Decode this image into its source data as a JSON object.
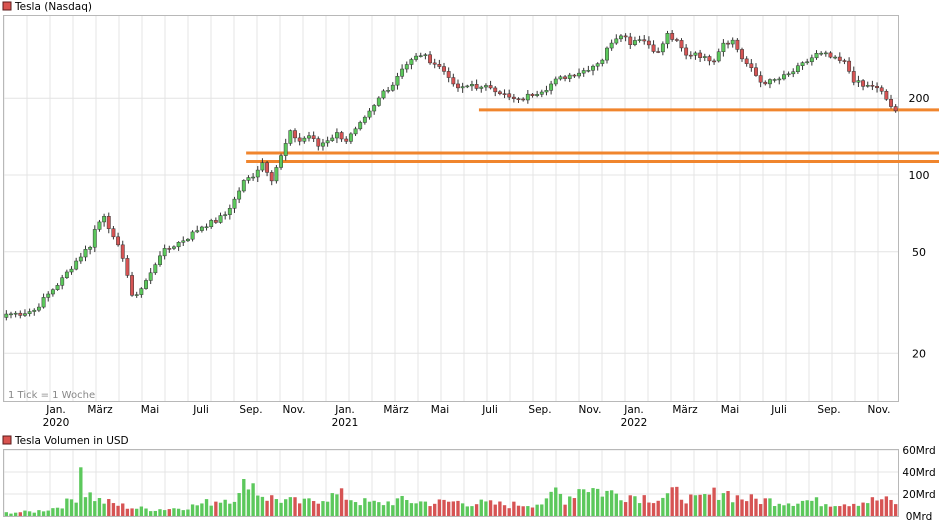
{
  "chart_data": [
    {
      "type": "candlestick",
      "title": "Tesla (Nasdaq)",
      "scale": "log",
      "ylim": [
        13,
        420
      ],
      "y_ticks": [
        20,
        50,
        100,
        200
      ],
      "y_tick_labels": [
        "20",
        "50",
        "100",
        "200"
      ],
      "x_month_labels": [
        "Jan.",
        "März",
        "Mai",
        "Juli",
        "Sep.",
        "Nov.",
        "Jan.",
        "März",
        "Mai",
        "Juli",
        "Sep.",
        "Nov.",
        "Jan.",
        "März",
        "Mai",
        "Juli",
        "Sep.",
        "Nov."
      ],
      "x_year_labels": [
        "2020",
        "2021",
        "2022"
      ],
      "note": "1 Tick = 1 Woche",
      "grid": true,
      "up_color": "#5cc85c",
      "down_color": "#d65454",
      "support_lines": [
        {
          "value": 180,
          "start_week": 102,
          "color": "#f0852d"
        },
        {
          "value": 122,
          "start_week": 52,
          "color": "#f0852d"
        },
        {
          "value": 113,
          "start_week": 52,
          "color": "#f0852d"
        }
      ],
      "anchor_closes": [
        [
          0,
          28.5
        ],
        [
          3,
          28.7
        ],
        [
          6,
          29.5
        ],
        [
          9,
          34
        ],
        [
          12,
          39
        ],
        [
          15,
          46
        ],
        [
          18,
          53
        ],
        [
          19,
          61
        ],
        [
          21,
          70
        ],
        [
          23,
          56
        ],
        [
          25,
          48
        ],
        [
          27,
          33
        ],
        [
          29,
          36
        ],
        [
          31,
          41
        ],
        [
          33,
          49
        ],
        [
          36,
          53
        ],
        [
          39,
          57
        ],
        [
          42,
          63
        ],
        [
          45,
          66
        ],
        [
          47,
          70
        ],
        [
          49,
          80
        ],
        [
          51,
          94
        ],
        [
          53,
          100
        ],
        [
          55,
          112
        ],
        [
          57,
          97
        ],
        [
          59,
          118
        ],
        [
          61,
          146
        ],
        [
          63,
          136
        ],
        [
          65,
          143
        ],
        [
          67,
          130
        ],
        [
          69,
          138
        ],
        [
          71,
          145
        ],
        [
          73,
          137
        ],
        [
          75,
          149
        ],
        [
          77,
          165
        ],
        [
          79,
          185
        ],
        [
          81,
          213
        ],
        [
          83,
          227
        ],
        [
          85,
          264
        ],
        [
          87,
          281
        ],
        [
          89,
          297
        ],
        [
          91,
          282
        ],
        [
          93,
          265
        ],
        [
          95,
          246
        ],
        [
          96,
          222
        ],
        [
          98,
          218
        ],
        [
          100,
          227
        ],
        [
          102,
          218
        ],
        [
          104,
          222
        ],
        [
          106,
          212
        ],
        [
          108,
          200
        ],
        [
          110,
          195
        ],
        [
          112,
          204
        ],
        [
          114,
          212
        ],
        [
          116,
          220
        ],
        [
          118,
          234
        ],
        [
          120,
          243
        ],
        [
          122,
          250
        ],
        [
          124,
          257
        ],
        [
          126,
          269
        ],
        [
          128,
          285
        ],
        [
          130,
          335
        ],
        [
          132,
          360
        ],
        [
          134,
          331
        ],
        [
          136,
          346
        ],
        [
          138,
          325
        ],
        [
          140,
          300
        ],
        [
          142,
          355
        ],
        [
          144,
          330
        ],
        [
          146,
          293
        ],
        [
          148,
          303
        ],
        [
          150,
          286
        ],
        [
          152,
          286
        ],
        [
          154,
          332
        ],
        [
          156,
          336
        ],
        [
          158,
          287
        ],
        [
          160,
          258
        ],
        [
          162,
          232
        ],
        [
          164,
          232
        ],
        [
          166,
          238
        ],
        [
          168,
          247
        ],
        [
          170,
          262
        ],
        [
          172,
          279
        ],
        [
          174,
          297
        ],
        [
          176,
          295
        ],
        [
          178,
          283
        ],
        [
          180,
          275
        ],
        [
          182,
          236
        ],
        [
          184,
          222
        ],
        [
          186,
          224
        ],
        [
          188,
          210
        ],
        [
          190,
          186
        ],
        [
          191,
          175
        ]
      ]
    },
    {
      "type": "bar",
      "title": "Tesla Volumen in USD",
      "ylim": [
        0,
        60
      ],
      "y_ticks": [
        0,
        20,
        40,
        60
      ],
      "y_tick_labels": [
        "0Mrd",
        "20Mrd",
        "40Mrd",
        "60Mrd"
      ],
      "unit": "Mrd USD",
      "up_color": "#5cc85c",
      "down_color": "#d65454",
      "anchor_values": [
        [
          0,
          3
        ],
        [
          6,
          4
        ],
        [
          10,
          7
        ],
        [
          13,
          12
        ],
        [
          15,
          18
        ],
        [
          16,
          48
        ],
        [
          17,
          22
        ],
        [
          20,
          14
        ],
        [
          24,
          10
        ],
        [
          28,
          7
        ],
        [
          32,
          6
        ],
        [
          36,
          7
        ],
        [
          40,
          9
        ],
        [
          44,
          13
        ],
        [
          47,
          16
        ],
        [
          50,
          18
        ],
        [
          52,
          36
        ],
        [
          54,
          22
        ],
        [
          56,
          17
        ],
        [
          60,
          14
        ],
        [
          64,
          12
        ],
        [
          68,
          17
        ],
        [
          72,
          19
        ],
        [
          76,
          13
        ],
        [
          80,
          11
        ],
        [
          84,
          14
        ],
        [
          88,
          13
        ],
        [
          92,
          12
        ],
        [
          96,
          13
        ],
        [
          100,
          12
        ],
        [
          104,
          11
        ],
        [
          108,
          10
        ],
        [
          112,
          11
        ],
        [
          116,
          12
        ],
        [
          118,
          24
        ],
        [
          120,
          15
        ],
        [
          124,
          28
        ],
        [
          128,
          22
        ],
        [
          132,
          20
        ],
        [
          136,
          18
        ],
        [
          140,
          16
        ],
        [
          144,
          21
        ],
        [
          148,
          14
        ],
        [
          152,
          20
        ],
        [
          154,
          24
        ],
        [
          156,
          18
        ],
        [
          160,
          15
        ],
        [
          164,
          14
        ],
        [
          168,
          13
        ],
        [
          172,
          14
        ],
        [
          176,
          12
        ],
        [
          180,
          12
        ],
        [
          184,
          13
        ],
        [
          188,
          15
        ],
        [
          191,
          12
        ]
      ]
    }
  ]
}
